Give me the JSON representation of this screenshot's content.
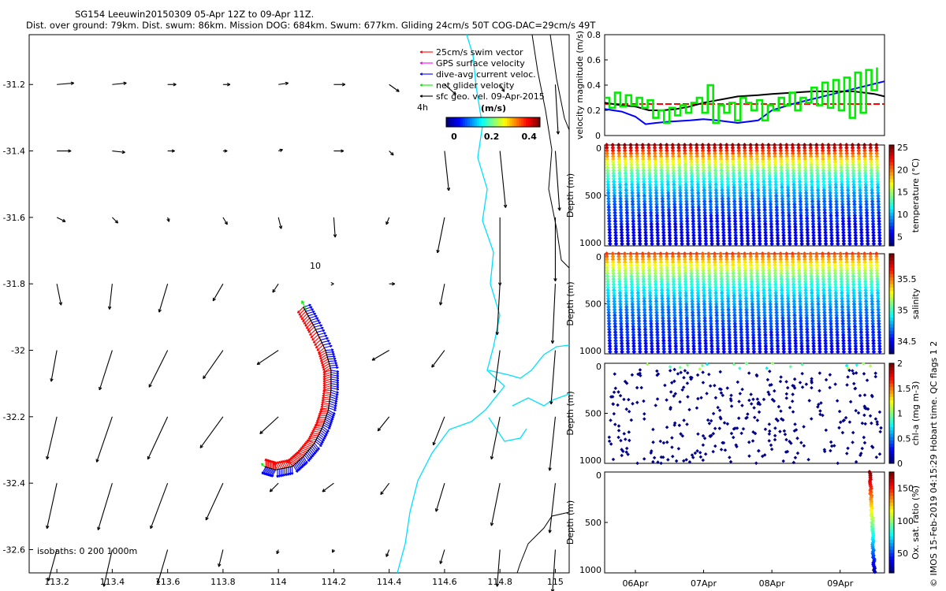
{
  "title": {
    "line1": "SG154 Leeuwin20150309 05-Apr 12Z to 09-Apr 11Z.",
    "line2": "Dist. over ground: 79km. Dist. swum: 86km. Mission DOG: 684km. Swum: 677km. Gliding 24cm/s 50T COG-DAC=29cm/s 49T"
  },
  "side_note": "© IMOS 15-Feb-2019 04:15:29 Hobart time. QC flags 1  2",
  "colors": {
    "swim": "#ff0000",
    "gps": "#ff00ff",
    "dac": "#0000ff",
    "net": "#00ee00",
    "geo": "#000000",
    "coast": "#00e0ff",
    "isobath": "#000000"
  },
  "chart_data": [
    {
      "type": "scatter",
      "name": "map",
      "xlim": [
        113.1,
        115.05
      ],
      "ylim": [
        -32.67,
        -31.05
      ],
      "xticks": [
        113.2,
        113.4,
        113.6,
        113.8,
        114,
        114.2,
        114.4,
        114.6,
        114.8,
        115
      ],
      "xtick_labels": [
        "113.2",
        "113.4",
        "113.6",
        "113.8",
        "114",
        "114.2",
        "114.4",
        "114.6",
        "114.8",
        "115"
      ],
      "yticks": [
        -31.2,
        -31.4,
        -31.6,
        -31.8,
        -32,
        -32.2,
        -32.4,
        -32.6
      ],
      "ytick_labels": [
        "-31.2",
        "-31.4",
        "-31.6",
        "-31.8",
        "-32",
        "-32.2",
        "-32.4",
        "-32.6"
      ],
      "legend": [
        {
          "label": "25cm/s swim vector",
          "color_key": "swim"
        },
        {
          "label": "GPS surface velocity",
          "color_key": "gps"
        },
        {
          "label": "dive-avg current veloc.",
          "color_key": "dac"
        },
        {
          "label": "net glider velocity",
          "color_key": "net"
        },
        {
          "label": "sfc geo. vel. 09-Apr-2015",
          "color_key": "geo"
        }
      ],
      "speed_label": "(m/s)",
      "time_label": "4h",
      "colorbar_ticks": [
        0,
        0.2,
        0.4
      ],
      "colorbar_tick_labels": [
        "0",
        "0.2",
        "0.4"
      ],
      "colorbar_range": [
        0,
        0.5
      ],
      "isobath_label": "isobaths: 0   200  1000m",
      "contour_label": "10",
      "track_lonlat": [
        [
          114.09,
          -31.87
        ],
        [
          114.13,
          -31.93
        ],
        [
          114.17,
          -32.0
        ],
        [
          114.19,
          -32.06
        ],
        [
          114.19,
          -32.12
        ],
        [
          114.18,
          -32.18
        ],
        [
          114.16,
          -32.23
        ],
        [
          114.13,
          -32.28
        ],
        [
          114.09,
          -32.32
        ],
        [
          114.05,
          -32.35
        ],
        [
          113.99,
          -32.36
        ],
        [
          113.95,
          -32.35
        ]
      ],
      "geo_arrows": [
        {
          "lon": 113.2,
          "lat": -31.2,
          "u": 0.12,
          "v": 0.01
        },
        {
          "lon": 113.4,
          "lat": -31.2,
          "u": 0.1,
          "v": 0.01
        },
        {
          "lon": 113.6,
          "lat": -31.2,
          "u": 0.06,
          "v": 0.0
        },
        {
          "lon": 113.8,
          "lat": -31.2,
          "u": 0.05,
          "v": 0.0
        },
        {
          "lon": 114.0,
          "lat": -31.2,
          "u": 0.07,
          "v": 0.01
        },
        {
          "lon": 114.2,
          "lat": -31.2,
          "u": 0.08,
          "v": 0.0
        },
        {
          "lon": 114.4,
          "lat": -31.2,
          "u": 0.07,
          "v": -0.05
        },
        {
          "lon": 114.6,
          "lat": -31.2,
          "u": 0.08,
          "v": -0.07
        },
        {
          "lon": 114.8,
          "lat": -31.2,
          "u": 0.03,
          "v": -0.05
        },
        {
          "lon": 115.0,
          "lat": -31.2,
          "u": 0.02,
          "v": -0.35
        },
        {
          "lon": 113.2,
          "lat": -31.4,
          "u": 0.1,
          "v": 0.0
        },
        {
          "lon": 113.4,
          "lat": -31.4,
          "u": 0.09,
          "v": -0.01
        },
        {
          "lon": 113.6,
          "lat": -31.4,
          "u": 0.05,
          "v": 0.0
        },
        {
          "lon": 113.8,
          "lat": -31.4,
          "u": 0.03,
          "v": 0.0
        },
        {
          "lon": 114.0,
          "lat": -31.4,
          "u": 0.03,
          "v": 0.01
        },
        {
          "lon": 114.2,
          "lat": -31.4,
          "u": 0.07,
          "v": 0.0
        },
        {
          "lon": 114.4,
          "lat": -31.4,
          "u": 0.03,
          "v": -0.03
        },
        {
          "lon": 114.6,
          "lat": -31.4,
          "u": 0.03,
          "v": -0.28
        },
        {
          "lon": 114.8,
          "lat": -31.4,
          "u": 0.04,
          "v": -0.4
        },
        {
          "lon": 115.0,
          "lat": -31.4,
          "u": 0.03,
          "v": -0.42
        },
        {
          "lon": 113.2,
          "lat": -31.6,
          "u": 0.06,
          "v": -0.03
        },
        {
          "lon": 113.4,
          "lat": -31.6,
          "u": 0.04,
          "v": -0.04
        },
        {
          "lon": 113.6,
          "lat": -31.6,
          "u": 0.01,
          "v": -0.03
        },
        {
          "lon": 113.8,
          "lat": -31.6,
          "u": 0.03,
          "v": -0.05
        },
        {
          "lon": 114.0,
          "lat": -31.6,
          "u": 0.02,
          "v": -0.08
        },
        {
          "lon": 114.2,
          "lat": -31.6,
          "u": 0.01,
          "v": -0.14
        },
        {
          "lon": 114.4,
          "lat": -31.6,
          "u": -0.02,
          "v": -0.05
        },
        {
          "lon": 114.6,
          "lat": -31.6,
          "u": -0.05,
          "v": -0.25
        },
        {
          "lon": 114.8,
          "lat": -31.6,
          "u": 0.0,
          "v": -0.48
        },
        {
          "lon": 115.0,
          "lat": -31.6,
          "u": 0.0,
          "v": -0.45
        },
        {
          "lon": 113.2,
          "lat": -31.8,
          "u": 0.03,
          "v": -0.15
        },
        {
          "lon": 113.4,
          "lat": -31.8,
          "u": -0.02,
          "v": -0.18
        },
        {
          "lon": 113.6,
          "lat": -31.8,
          "u": -0.06,
          "v": -0.2
        },
        {
          "lon": 113.8,
          "lat": -31.8,
          "u": -0.07,
          "v": -0.12
        },
        {
          "lon": 114.0,
          "lat": -31.8,
          "u": -0.04,
          "v": -0.06
        },
        {
          "lon": 114.2,
          "lat": -31.8,
          "u": 0.0,
          "v": 0.0
        },
        {
          "lon": 114.4,
          "lat": -31.8,
          "u": 0.04,
          "v": 0.0
        },
        {
          "lon": 114.6,
          "lat": -31.8,
          "u": -0.03,
          "v": -0.15
        },
        {
          "lon": 114.8,
          "lat": -31.8,
          "u": -0.02,
          "v": -0.36
        },
        {
          "lon": 115.0,
          "lat": -31.8,
          "u": -0.02,
          "v": -0.42
        },
        {
          "lon": 113.2,
          "lat": -32.0,
          "u": -0.04,
          "v": -0.22
        },
        {
          "lon": 113.4,
          "lat": -32.0,
          "u": -0.09,
          "v": -0.28
        },
        {
          "lon": 113.6,
          "lat": -32.0,
          "u": -0.13,
          "v": -0.26
        },
        {
          "lon": 113.8,
          "lat": -32.0,
          "u": -0.14,
          "v": -0.2
        },
        {
          "lon": 114.0,
          "lat": -32.0,
          "u": -0.15,
          "v": -0.1
        },
        {
          "lon": 114.4,
          "lat": -32.0,
          "u": -0.12,
          "v": -0.07
        },
        {
          "lon": 114.6,
          "lat": -32.0,
          "u": -0.09,
          "v": -0.12
        },
        {
          "lon": 114.8,
          "lat": -32.0,
          "u": -0.04,
          "v": -0.3
        },
        {
          "lon": 115.0,
          "lat": -32.0,
          "u": -0.03,
          "v": -0.38
        },
        {
          "lon": 113.2,
          "lat": -32.2,
          "u": -0.07,
          "v": -0.3
        },
        {
          "lon": 113.4,
          "lat": -32.2,
          "u": -0.11,
          "v": -0.32
        },
        {
          "lon": 113.6,
          "lat": -32.2,
          "u": -0.14,
          "v": -0.3
        },
        {
          "lon": 113.8,
          "lat": -32.2,
          "u": -0.16,
          "v": -0.22
        },
        {
          "lon": 114.0,
          "lat": -32.2,
          "u": -0.13,
          "v": -0.12
        },
        {
          "lon": 114.4,
          "lat": -32.2,
          "u": -0.08,
          "v": -0.1
        },
        {
          "lon": 114.6,
          "lat": -32.2,
          "u": -0.08,
          "v": -0.2
        },
        {
          "lon": 114.8,
          "lat": -32.2,
          "u": -0.06,
          "v": -0.3
        },
        {
          "lon": 115.0,
          "lat": -32.2,
          "u": -0.04,
          "v": -0.38
        },
        {
          "lon": 113.2,
          "lat": -32.4,
          "u": -0.07,
          "v": -0.32
        },
        {
          "lon": 113.4,
          "lat": -32.4,
          "u": -0.1,
          "v": -0.33
        },
        {
          "lon": 113.6,
          "lat": -32.4,
          "u": -0.12,
          "v": -0.32
        },
        {
          "lon": 113.8,
          "lat": -32.4,
          "u": -0.12,
          "v": -0.26
        },
        {
          "lon": 114.0,
          "lat": -32.4,
          "u": -0.06,
          "v": -0.06
        },
        {
          "lon": 114.2,
          "lat": -32.4,
          "u": -0.08,
          "v": -0.06
        },
        {
          "lon": 114.4,
          "lat": -32.4,
          "u": -0.06,
          "v": -0.08
        },
        {
          "lon": 114.6,
          "lat": -32.4,
          "u": -0.06,
          "v": -0.2
        },
        {
          "lon": 114.8,
          "lat": -32.4,
          "u": -0.06,
          "v": -0.3
        },
        {
          "lon": 115.0,
          "lat": -32.4,
          "u": -0.04,
          "v": -0.35
        },
        {
          "lon": 113.2,
          "lat": -32.6,
          "u": -0.06,
          "v": -0.22
        },
        {
          "lon": 113.4,
          "lat": -32.6,
          "u": -0.06,
          "v": -0.26
        },
        {
          "lon": 113.6,
          "lat": -32.6,
          "u": -0.07,
          "v": -0.24
        },
        {
          "lon": 113.8,
          "lat": -32.6,
          "u": -0.03,
          "v": -0.12
        },
        {
          "lon": 114.0,
          "lat": -32.6,
          "u": -0.01,
          "v": -0.03
        },
        {
          "lon": 114.2,
          "lat": -32.6,
          "u": -0.01,
          "v": -0.02
        },
        {
          "lon": 114.4,
          "lat": -32.6,
          "u": -0.02,
          "v": -0.05
        },
        {
          "lon": 114.6,
          "lat": -32.6,
          "u": -0.03,
          "v": -0.1
        },
        {
          "lon": 114.8,
          "lat": -32.6,
          "u": -0.02,
          "v": -0.26
        },
        {
          "lon": 115.0,
          "lat": -32.6,
          "u": -0.02,
          "v": -0.3
        }
      ]
    },
    {
      "type": "line",
      "name": "velocity",
      "ylabel": "velocity magnitude (m/s)",
      "ylim": [
        0,
        0.8
      ],
      "yticks": [
        0,
        0.2,
        0.4,
        0.6,
        0.8
      ],
      "ytick_labels": [
        "0",
        "0.2",
        "0.4",
        "0.6",
        "0.8"
      ],
      "xlim": [
        5.55,
        9.65
      ],
      "series": [
        {
          "name": "swim speed",
          "color_key": "swim",
          "x": [
            5.55,
            9.65
          ],
          "y": [
            0.25,
            0.25
          ]
        },
        {
          "name": "dive-avg current",
          "color_key": "dac",
          "x": [
            5.55,
            5.8,
            6.0,
            6.15,
            6.3,
            6.5,
            6.8,
            7.0,
            7.2,
            7.5,
            7.8,
            8.0,
            8.3,
            8.6,
            8.9,
            9.2,
            9.5,
            9.65
          ],
          "y": [
            0.21,
            0.19,
            0.15,
            0.09,
            0.1,
            0.11,
            0.12,
            0.13,
            0.12,
            0.1,
            0.12,
            0.2,
            0.25,
            0.29,
            0.33,
            0.37,
            0.41,
            0.43
          ]
        },
        {
          "name": "net glider velocity",
          "color_key": "geo",
          "x": [
            5.55,
            5.8,
            6.0,
            6.2,
            6.4,
            6.6,
            6.8,
            7.0,
            7.2,
            7.5,
            7.8,
            8.0,
            8.3,
            8.6,
            8.9,
            9.2,
            9.5,
            9.65
          ],
          "y": [
            0.26,
            0.24,
            0.23,
            0.2,
            0.2,
            0.21,
            0.23,
            0.26,
            0.28,
            0.31,
            0.32,
            0.33,
            0.34,
            0.35,
            0.35,
            0.35,
            0.33,
            0.31
          ]
        },
        {
          "name": "net glider velocity (segments)",
          "color_key": "net",
          "step": true,
          "x": [
            5.55,
            5.62,
            5.7,
            5.78,
            5.86,
            5.94,
            6.02,
            6.1,
            6.18,
            6.26,
            6.34,
            6.42,
            6.5,
            6.58,
            6.66,
            6.74,
            6.82,
            6.9,
            6.98,
            7.06,
            7.14,
            7.22,
            7.3,
            7.38,
            7.46,
            7.54,
            7.62,
            7.7,
            7.78,
            7.86,
            7.94,
            8.02,
            8.1,
            8.18,
            8.26,
            8.34,
            8.42,
            8.5,
            8.58,
            8.66,
            8.74,
            8.82,
            8.9,
            8.98,
            9.06,
            9.14,
            9.22,
            9.3,
            9.38,
            9.46,
            9.54
          ],
          "y": [
            0.3,
            0.22,
            0.34,
            0.23,
            0.32,
            0.24,
            0.3,
            0.22,
            0.28,
            0.14,
            0.2,
            0.1,
            0.22,
            0.16,
            0.24,
            0.18,
            0.26,
            0.3,
            0.18,
            0.4,
            0.1,
            0.24,
            0.18,
            0.26,
            0.12,
            0.3,
            0.26,
            0.2,
            0.28,
            0.12,
            0.24,
            0.2,
            0.3,
            0.24,
            0.34,
            0.2,
            0.3,
            0.26,
            0.38,
            0.24,
            0.42,
            0.22,
            0.44,
            0.2,
            0.46,
            0.14,
            0.5,
            0.18,
            0.52,
            0.36,
            0.54
          ]
        }
      ]
    },
    {
      "type": "heatmap",
      "name": "temperature",
      "ylabel": "Depth (m)",
      "cbar_label": "temperature (°C)",
      "clim": [
        3,
        25.5
      ],
      "cbar_ticks": [
        5,
        10,
        15,
        20,
        25
      ],
      "cbar_tick_labels": [
        "5",
        "10",
        "15",
        "20",
        "25"
      ],
      "ylim": [
        0,
        1000
      ],
      "yticks": [
        0,
        500,
        1000
      ],
      "ytick_labels": [
        "0",
        "500",
        "1000"
      ],
      "profile_count": 46,
      "surface_value": 25,
      "bottom_value": 4,
      "decay_m": 350
    },
    {
      "type": "heatmap",
      "name": "salinity",
      "ylabel": "Depth (m)",
      "cbar_label": "salinity",
      "clim": [
        34.3,
        35.9
      ],
      "cbar_ticks": [
        34.5,
        35,
        35.5
      ],
      "cbar_tick_labels": [
        "34.5",
        "35",
        "35.5"
      ],
      "ylim": [
        0,
        1000
      ],
      "yticks": [
        0,
        500,
        1000
      ],
      "ytick_labels": [
        "0",
        "500",
        "1000"
      ],
      "profile_count": 46,
      "surface_value": 35.6,
      "bottom_value": 34.4,
      "decay_m": 400
    },
    {
      "type": "heatmap",
      "name": "chl-a",
      "ylabel": "Depth (m)",
      "cbar_label": "chl-a (mg m-3)",
      "clim": [
        0,
        2
      ],
      "cbar_ticks": [
        0,
        0.5,
        1,
        1.5,
        2
      ],
      "cbar_tick_labels": [
        "0",
        "0.5",
        "1",
        "1.5",
        "2"
      ],
      "ylim": [
        0,
        1000
      ],
      "yticks": [
        0,
        500,
        1000
      ],
      "ytick_labels": [
        "0",
        "500",
        "1000"
      ],
      "profile_count": 46,
      "sparse": true
    },
    {
      "type": "heatmap",
      "name": "oxygen",
      "ylabel": "Depth (m)",
      "cbar_label": "Ox. sat. ratio (%)",
      "clim": [
        20,
        175
      ],
      "cbar_ticks": [
        50,
        100,
        150
      ],
      "cbar_tick_labels": [
        "50",
        "100",
        "150"
      ],
      "ylim": [
        0,
        1000
      ],
      "yticks": [
        0,
        500,
        1000
      ],
      "ytick_labels": [
        "0",
        "500",
        "1000"
      ],
      "xlim": [
        5.55,
        9.65
      ],
      "xticks": [
        6,
        7,
        8,
        9
      ],
      "xtick_labels": [
        "06Apr",
        "07Apr",
        "08Apr",
        "09Apr"
      ],
      "profile_count": 3,
      "start_day": 9.4
    }
  ]
}
